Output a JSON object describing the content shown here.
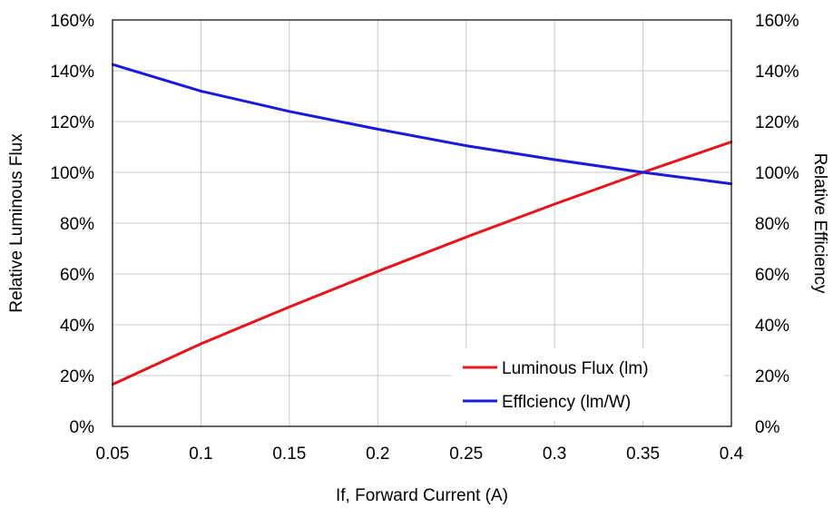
{
  "chart_data": {
    "type": "line",
    "xlabel": "If, Forward Current (A)",
    "ylabel": "Relative Luminous Flux",
    "y2label": "Relative Efficiency",
    "xlim": [
      0.05,
      0.4
    ],
    "ylim": [
      0,
      160
    ],
    "y2lim": [
      0,
      160
    ],
    "x_ticks": [
      "0.05",
      "0.1",
      "0.15",
      "0.2",
      "0.25",
      "0.3",
      "0.35",
      "0.4"
    ],
    "y_ticks": [
      "0%",
      "20%",
      "40%",
      "60%",
      "80%",
      "100%",
      "120%",
      "140%",
      "160%"
    ],
    "y2_ticks": [
      "0%",
      "20%",
      "40%",
      "60%",
      "80%",
      "100%",
      "120%",
      "140%",
      "160%"
    ],
    "grid": true,
    "legend_position": "bottom-right",
    "series": [
      {
        "name": "Luminous Flux (lm)",
        "color": "#e8141b",
        "axis": "left",
        "x": [
          0.05,
          0.1,
          0.15,
          0.2,
          0.25,
          0.3,
          0.35,
          0.4
        ],
        "y": [
          16.5,
          32.5,
          47,
          61,
          74.5,
          87.5,
          100,
          112
        ]
      },
      {
        "name": "Efflciency (lm/W)",
        "color": "#1a1adc",
        "axis": "right",
        "x": [
          0.05,
          0.1,
          0.15,
          0.2,
          0.25,
          0.3,
          0.35,
          0.4
        ],
        "y": [
          142.5,
          132,
          124,
          117,
          110.5,
          105,
          100,
          95.5
        ]
      }
    ]
  }
}
